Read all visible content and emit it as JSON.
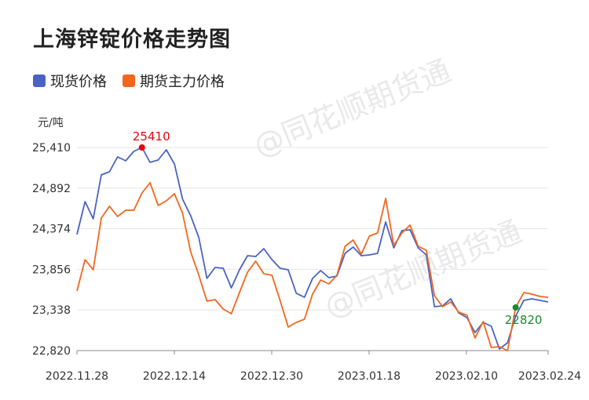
{
  "title": "上海锌锭价格走势图",
  "unit": "元/吨",
  "watermark": "@同花顺期货通",
  "legend": [
    {
      "label": "现货价格",
      "color": "#4a63c4"
    },
    {
      "label": "期货主力价格",
      "color": "#f2661e"
    }
  ],
  "chart_data": {
    "type": "line",
    "ylim": [
      22820,
      25410
    ],
    "yticks": [
      "25,410",
      "24,892",
      "24,374",
      "23,856",
      "23,338",
      "22,820"
    ],
    "xticks": [
      "2022.11.28",
      "2022.12.14",
      "2022.12.30",
      "2023.01.18",
      "2023.02.10",
      "2023.02.24"
    ],
    "grid": true,
    "legend_position": "top-left",
    "annotations": [
      {
        "label": "25410",
        "index": 8,
        "series": 0,
        "color": "#e8000b"
      },
      {
        "label": "22820",
        "index": 54,
        "series": 1,
        "color": "#1a8a2e"
      }
    ],
    "series": [
      {
        "name": "现货价格",
        "color": "#4a63c4",
        "values": [
          24300,
          24720,
          24500,
          25060,
          25100,
          25290,
          25240,
          25360,
          25410,
          25220,
          25250,
          25380,
          25200,
          24750,
          24540,
          24260,
          23740,
          23880,
          23870,
          23620,
          23850,
          24030,
          24020,
          24120,
          23980,
          23870,
          23850,
          23550,
          23500,
          23740,
          23840,
          23750,
          23770,
          24060,
          24140,
          24030,
          24040,
          24060,
          24460,
          24130,
          24350,
          24360,
          24130,
          24040,
          23380,
          23390,
          23480,
          23300,
          23240,
          23050,
          23180,
          23130,
          22840,
          22920,
          23260,
          23460,
          23480,
          23460,
          23440
        ]
      },
      {
        "name": "期货主力价格",
        "color": "#f2661e",
        "values": [
          23580,
          23980,
          23850,
          24510,
          24660,
          24530,
          24610,
          24610,
          24830,
          24960,
          24670,
          24730,
          24820,
          24570,
          24080,
          23780,
          23450,
          23470,
          23350,
          23290,
          23560,
          23820,
          23960,
          23800,
          23780,
          23460,
          23120,
          23180,
          23220,
          23540,
          23720,
          23670,
          23780,
          24150,
          24230,
          24050,
          24280,
          24320,
          24760,
          24160,
          24320,
          24420,
          24150,
          24100,
          23520,
          23380,
          23440,
          23310,
          23270,
          22980,
          23190,
          22860,
          22870,
          22820,
          23370,
          23560,
          23540,
          23510,
          23500
        ]
      }
    ]
  }
}
